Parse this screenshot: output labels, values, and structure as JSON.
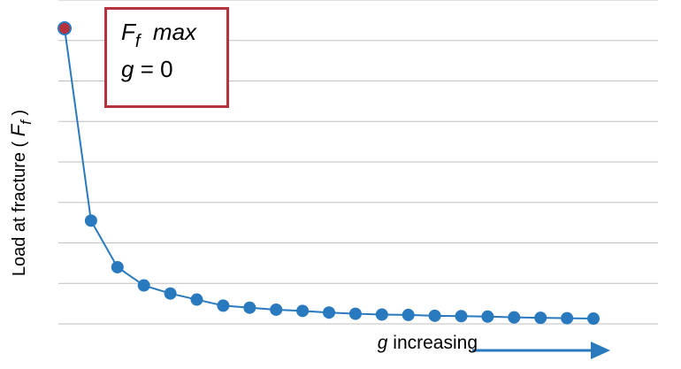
{
  "chart_data": {
    "type": "line",
    "title": "",
    "ylabel": {
      "text": "Load at fracture ( ",
      "var": "F",
      "sub": "f",
      "tail": " )"
    },
    "xlabel": {
      "var": "g",
      "text": " increasing"
    },
    "annotation": {
      "line1": {
        "var": "F",
        "sub": "f",
        "text": "max"
      },
      "line2": {
        "var": "g",
        "text": " = 0"
      }
    },
    "grid": true,
    "ylim": [
      0,
      8
    ],
    "series": [
      {
        "values": [
          7.3,
          2.55,
          1.4,
          0.95,
          0.75,
          0.6,
          0.45,
          0.4,
          0.35,
          0.32,
          0.28,
          0.25,
          0.23,
          0.22,
          0.2,
          0.19,
          0.18,
          0.16,
          0.15,
          0.14,
          0.13
        ]
      }
    ],
    "colors": {
      "line": "#2979be",
      "highlight_point": "#b5333d",
      "grid": "#bfbfbf",
      "annotation_border": "#b5333d",
      "arrow": "#2979be"
    }
  }
}
